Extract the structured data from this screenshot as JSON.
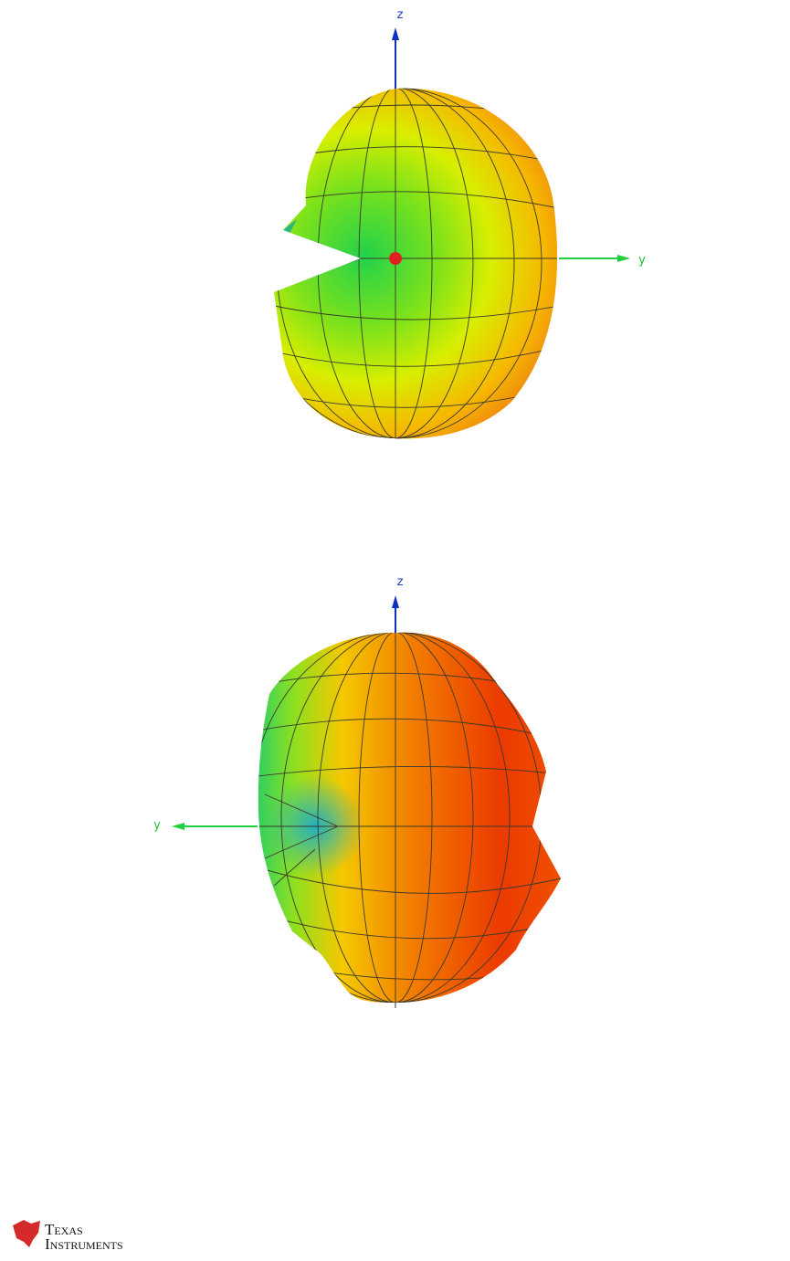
{
  "views": [
    {
      "z_label": "z",
      "y_label": "y"
    },
    {
      "z_label": "z",
      "y_label": "y"
    }
  ],
  "logo": {
    "line1": "Texas",
    "line2": "Instruments"
  }
}
